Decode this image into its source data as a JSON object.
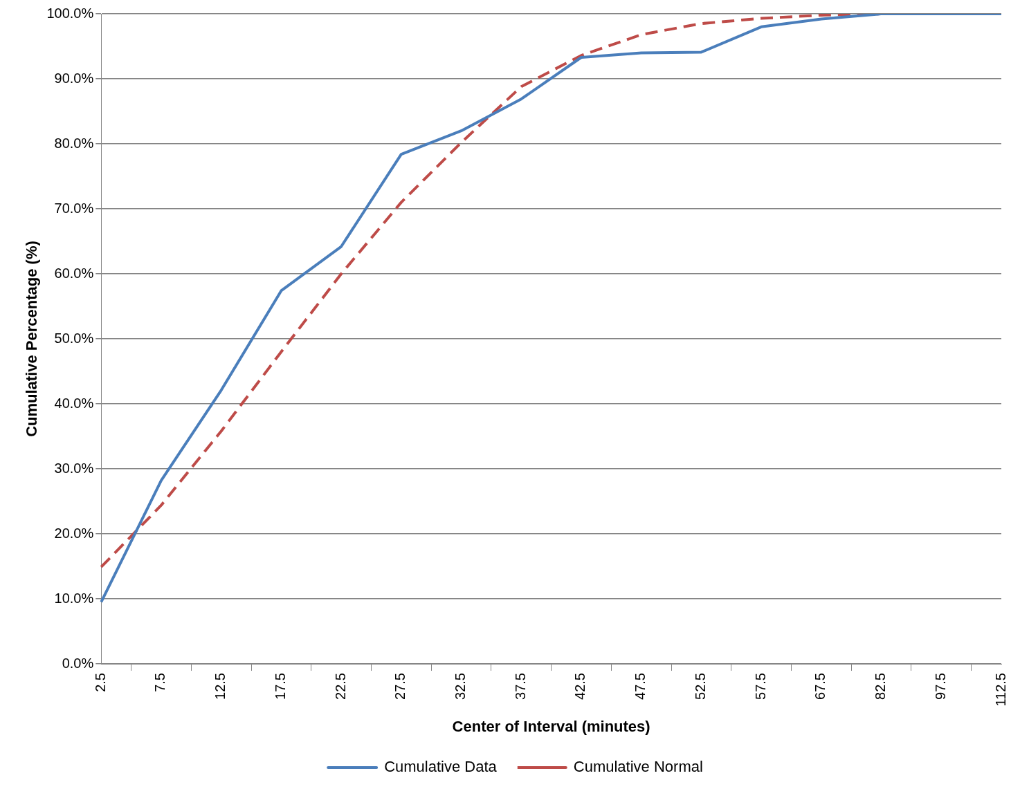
{
  "chart_data": {
    "type": "line",
    "xlabel": "Center of Interval (minutes)",
    "ylabel": "Cumulative Percentage (%)",
    "categories": [
      "2.5",
      "7.5",
      "12.5",
      "17.5",
      "22.5",
      "27.5",
      "32.5",
      "37.5",
      "42.5",
      "47.5",
      "52.5",
      "57.5",
      "67.5",
      "82.5",
      "97.5",
      "112.5"
    ],
    "series": [
      {
        "name": "Cumulative Data",
        "color": "#4a7ebb",
        "line_style": "solid",
        "values": [
          9.5,
          28.2,
          42.1,
          57.4,
          64.2,
          78.4,
          82.0,
          86.9,
          93.3,
          94.0,
          94.1,
          98.0,
          99.2,
          100,
          100,
          100
        ]
      },
      {
        "name": "Cumulative Normal",
        "color": "#be4b48",
        "line_style": "dashed",
        "values": [
          14.9,
          24.4,
          35.8,
          48.0,
          60.0,
          71.0,
          80.2,
          88.8,
          93.6,
          96.8,
          98.5,
          99.3,
          99.8,
          100,
          100,
          100
        ]
      }
    ],
    "ylim": [
      0,
      100
    ],
    "yticks": [
      {
        "value": 0,
        "label": "0.0%"
      },
      {
        "value": 10,
        "label": "10.0%"
      },
      {
        "value": 20,
        "label": "20.0%"
      },
      {
        "value": 30,
        "label": "30.0%"
      },
      {
        "value": 40,
        "label": "40.0%"
      },
      {
        "value": 50,
        "label": "50.0%"
      },
      {
        "value": 60,
        "label": "60.0%"
      },
      {
        "value": 70,
        "label": "70.0%"
      },
      {
        "value": 80,
        "label": "80.0%"
      },
      {
        "value": 90,
        "label": "90.0%"
      },
      {
        "value": 100,
        "label": "100.0%"
      }
    ],
    "grid": "y",
    "legend": "bottom",
    "marker": "none"
  }
}
